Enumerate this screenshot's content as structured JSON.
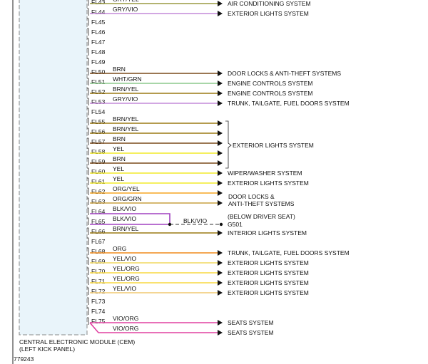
{
  "module": {
    "label_line1": "CENTRAL ELECTRONIC MODULE (CEM)",
    "label_line2": "(LEFT KICK PANEL)"
  },
  "figure_id": "779243",
  "pins": [
    {
      "pin": "FL43",
      "color": "GRY/YEL",
      "wire": "#9a9a40"
    },
    {
      "pin": "FL44",
      "color": "GRY/VIO",
      "wire": "#c48ad8"
    },
    {
      "pin": "FL45",
      "color": "",
      "wire": ""
    },
    {
      "pin": "FL46",
      "color": "",
      "wire": ""
    },
    {
      "pin": "FL47",
      "color": "",
      "wire": ""
    },
    {
      "pin": "FL48",
      "color": "",
      "wire": ""
    },
    {
      "pin": "FL49",
      "color": "",
      "wire": ""
    },
    {
      "pin": "FL50",
      "color": "BRN",
      "wire": "#7a4a1a"
    },
    {
      "pin": "FL51",
      "color": "WHT/GRN",
      "wire": "#8cc98c"
    },
    {
      "pin": "FL52",
      "color": "BRN/YEL",
      "wire": "#9c7a14"
    },
    {
      "pin": "FL53",
      "color": "GRY/VIO",
      "wire": "#c48ad8"
    },
    {
      "pin": "FL54",
      "color": "",
      "wire": ""
    },
    {
      "pin": "FL55",
      "color": "BRN/YEL",
      "wire": "#9c7a14"
    },
    {
      "pin": "FL56",
      "color": "BRN/YEL",
      "wire": "#9c7a14"
    },
    {
      "pin": "FL57",
      "color": "BRN",
      "wire": "#7a4a1a"
    },
    {
      "pin": "FL58",
      "color": "YEL",
      "wire": "#f2ea2a"
    },
    {
      "pin": "FL59",
      "color": "BRN",
      "wire": "#7a4a1a"
    },
    {
      "pin": "FL60",
      "color": "YEL",
      "wire": "#f2ea2a"
    },
    {
      "pin": "FL61",
      "color": "YEL",
      "wire": "#f2ea2a"
    },
    {
      "pin": "FL62",
      "color": "ORG/YEL",
      "wire": "#f5a623"
    },
    {
      "pin": "FL63",
      "color": "ORG/GRN",
      "wire": "#c9a040"
    },
    {
      "pin": "FL64",
      "color": "BLK/VIO",
      "wire": "#a040c0"
    },
    {
      "pin": "FL65",
      "color": "BLK/VIO",
      "wire": "#a040c0"
    },
    {
      "pin": "FL66",
      "color": "BRN/YEL",
      "wire": "#9c7a14"
    },
    {
      "pin": "FL67",
      "color": "",
      "wire": ""
    },
    {
      "pin": "FL68",
      "color": "ORG",
      "wire": "#f08a1c"
    },
    {
      "pin": "FL69",
      "color": "YEL/VIO",
      "wire": "#f0d860"
    },
    {
      "pin": "FL70",
      "color": "YEL/ORG",
      "wire": "#f8d840"
    },
    {
      "pin": "FL71",
      "color": "YEL/ORG",
      "wire": "#f8d840"
    },
    {
      "pin": "FL72",
      "color": "YEL/VIO",
      "wire": "#f0c870"
    },
    {
      "pin": "FL73",
      "color": "",
      "wire": ""
    },
    {
      "pin": "FL74",
      "color": "",
      "wire": ""
    },
    {
      "pin": "FL75",
      "color": "VIO/ORG",
      "wire": "#e040a0"
    }
  ],
  "extra_wire": {
    "color": "VIO/ORG",
    "wire": "#e040a0"
  },
  "destinations": [
    {
      "row": 0,
      "text": "AIR CONDITIONING SYSTEM"
    },
    {
      "row": 1,
      "text": "EXTERIOR LIGHTS SYSTEM"
    },
    {
      "row": 7,
      "text": "DOOR LOCKS & ANTI-THEFT SYSTEMS"
    },
    {
      "row": 8,
      "text": "ENGINE CONTROLS SYSTEM"
    },
    {
      "row": 9,
      "text": "ENGINE CONTROLS SYSTEM"
    },
    {
      "row": 10,
      "text": "TRUNK, TAILGATE, FUEL DOORS SYSTEM"
    },
    {
      "row": 17,
      "text": "WIPER/WASHER SYSTEM"
    },
    {
      "row": 18,
      "text": "EXTERIOR LIGHTS SYSTEM"
    },
    {
      "row": 23,
      "text": "INTERIOR LIGHTS SYSTEM"
    },
    {
      "row": 25,
      "text": "TRUNK, TAILGATE, FUEL DOORS SYSTEM"
    },
    {
      "row": 26,
      "text": "EXTERIOR LIGHTS SYSTEM"
    },
    {
      "row": 27,
      "text": "EXTERIOR LIGHTS SYSTEM"
    },
    {
      "row": 28,
      "text": "EXTERIOR LIGHTS SYSTEM"
    },
    {
      "row": 29,
      "text": "EXTERIOR LIGHTS SYSTEM"
    },
    {
      "row": 32,
      "text": "SEATS SYSTEM"
    },
    {
      "row": 33,
      "text": "SEATS SYSTEM"
    }
  ],
  "group_exterior": {
    "text": "EXTERIOR LIGHTS SYSTEM"
  },
  "door_locks_2": {
    "line1": "DOOR LOCKS &",
    "line2": "ANTI-THEFT SYSTEMS"
  },
  "ground": {
    "wire_color": "BLK/VIO",
    "location": "(BELOW DRIVER SEAT)",
    "id": "G501"
  }
}
